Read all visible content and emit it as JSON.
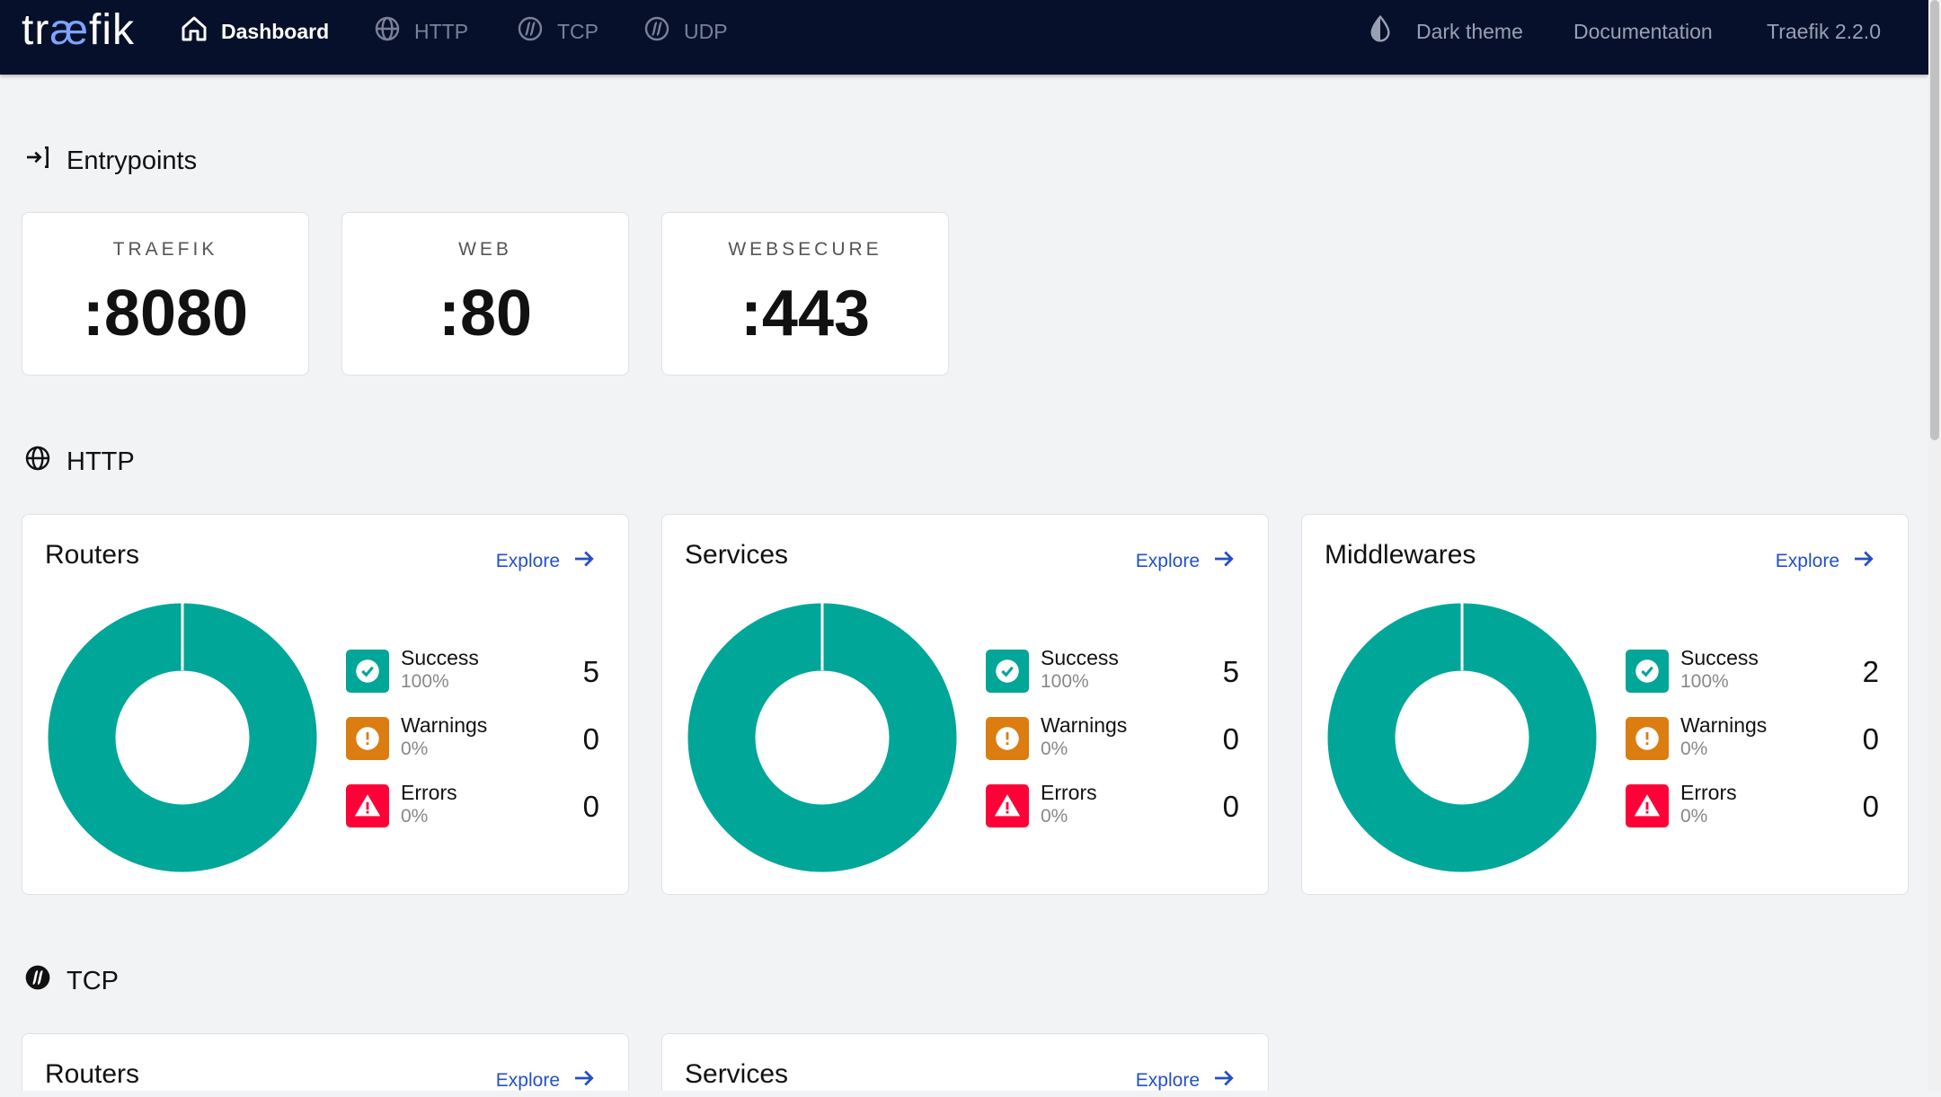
{
  "colors": {
    "topbar": "#07102b",
    "teal": "#00a697",
    "warning": "#db7d11",
    "error": "#ff0039",
    "link": "#2350c8"
  },
  "nav": {
    "logo_prefix": "tr",
    "logo_ae": "æ",
    "logo_suffix": "fik",
    "items": [
      {
        "label": "Dashboard",
        "icon": "home-icon"
      },
      {
        "label": "HTTP",
        "icon": "globe-icon"
      },
      {
        "label": "TCP",
        "icon": "tcp-icon"
      },
      {
        "label": "UDP",
        "icon": "udp-icon"
      }
    ],
    "dark_theme": "Dark theme",
    "documentation": "Documentation",
    "version": "Traefik 2.2.0"
  },
  "entrypoints": {
    "title": "Entrypoints",
    "items": [
      {
        "name": "TRAEFIK",
        "port": ":8080"
      },
      {
        "name": "WEB",
        "port": ":80"
      },
      {
        "name": "WEBSECURE",
        "port": ":443"
      }
    ]
  },
  "http": {
    "title": "HTTP",
    "cards": [
      {
        "title": "Routers",
        "explore": "Explore",
        "success": {
          "label": "Success",
          "pct": "100%",
          "count": "5"
        },
        "warnings": {
          "label": "Warnings",
          "pct": "0%",
          "count": "0"
        },
        "errors": {
          "label": "Errors",
          "pct": "0%",
          "count": "0"
        }
      },
      {
        "title": "Services",
        "explore": "Explore",
        "success": {
          "label": "Success",
          "pct": "100%",
          "count": "5"
        },
        "warnings": {
          "label": "Warnings",
          "pct": "0%",
          "count": "0"
        },
        "errors": {
          "label": "Errors",
          "pct": "0%",
          "count": "0"
        }
      },
      {
        "title": "Middlewares",
        "explore": "Explore",
        "success": {
          "label": "Success",
          "pct": "100%",
          "count": "2"
        },
        "warnings": {
          "label": "Warnings",
          "pct": "0%",
          "count": "0"
        },
        "errors": {
          "label": "Errors",
          "pct": "0%",
          "count": "0"
        }
      }
    ]
  },
  "tcp": {
    "title": "TCP",
    "cards": [
      {
        "title": "Routers",
        "explore": "Explore"
      },
      {
        "title": "Services",
        "explore": "Explore"
      }
    ]
  }
}
